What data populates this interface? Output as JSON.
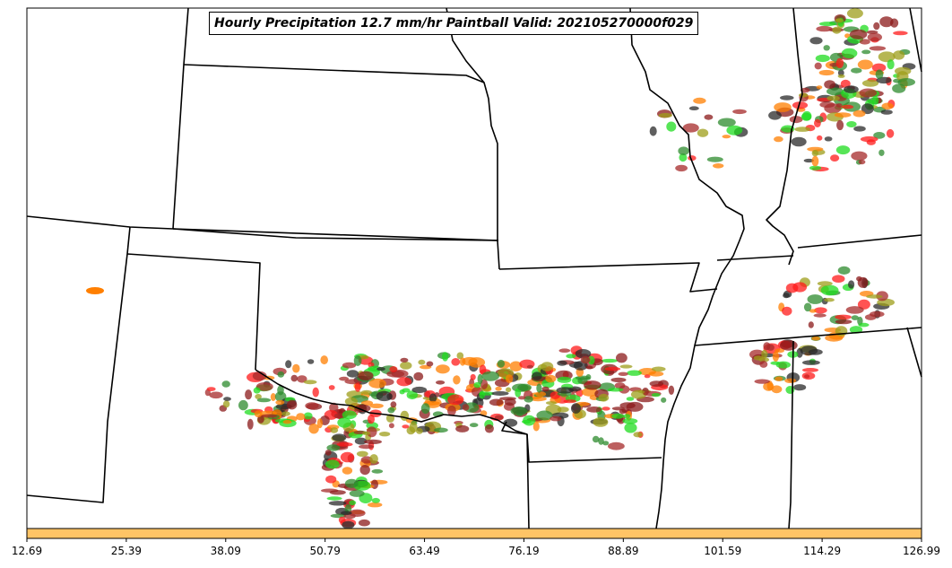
{
  "title": "Hourly Precipitation 12.7 mm/hr Paintball Valid: 202105270000f029",
  "colorbar": {
    "color": "#ffc466",
    "ticks": [
      "12.69",
      "25.39",
      "38.09",
      "50.79",
      "63.49",
      "76.19",
      "88.89",
      "101.59",
      "114.29",
      "126.99"
    ]
  },
  "member_colors": [
    "#ff7f00",
    "#ff1a1a",
    "#1fdc1f",
    "#9e9e1a",
    "#8b1a1a",
    "#2e8b2e",
    "#2a2a2a",
    "#a52a2a"
  ]
}
